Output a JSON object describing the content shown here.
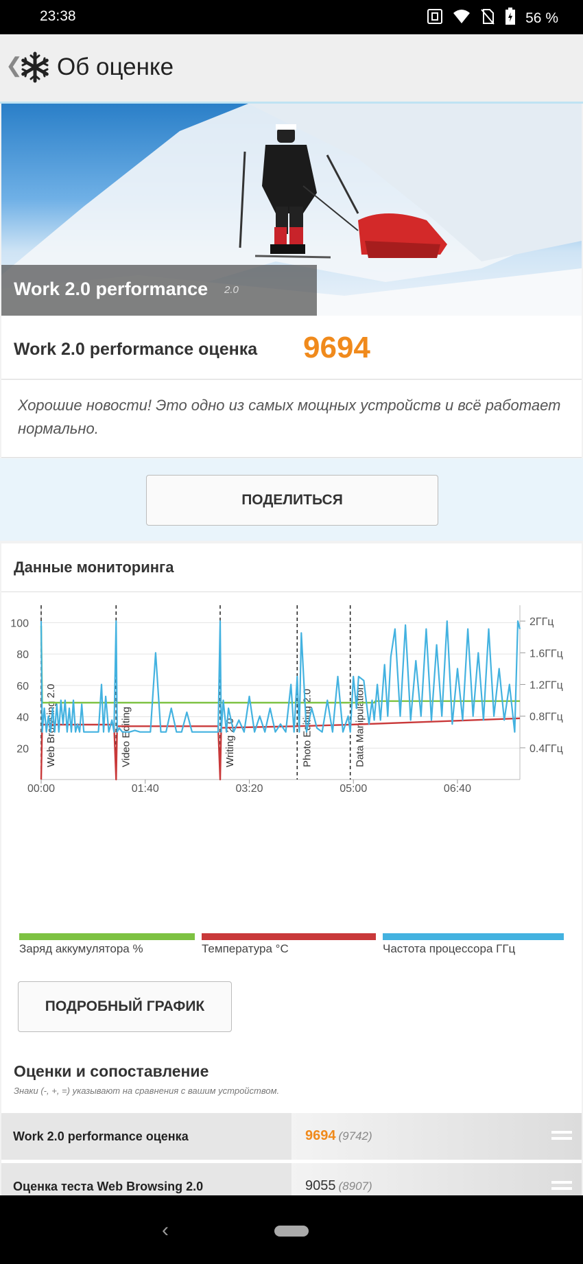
{
  "status": {
    "time": "23:38",
    "battery": "56 %"
  },
  "app": {
    "title": "Об оценке"
  },
  "hero": {
    "title": "Work 2.0 performance",
    "version": "2.0"
  },
  "score": {
    "label": "Work 2.0 performance оценка",
    "value": "9694"
  },
  "message": "Хорошие новости! Это одно из самых мощных устройств и всё работает нормально.",
  "share_label": "ПОДЕЛИТЬСЯ",
  "monitoring": {
    "title": "Данные мониторинга"
  },
  "legend": [
    {
      "label": "Заряд аккумулятора %",
      "color": "#7dc242"
    },
    {
      "label": "Температура °C",
      "color": "#c9393a"
    },
    {
      "label": "Частота процессора ГГц",
      "color": "#43b2e0"
    }
  ],
  "chart_data": {
    "type": "line",
    "x_ticks": [
      "00:00",
      "01:40",
      "03:20",
      "05:00",
      "06:40"
    ],
    "y_left_ticks": [
      "20",
      "40",
      "60",
      "80",
      "100"
    ],
    "y_right_ticks": [
      "0.4ГГц",
      "0.8ГГц",
      "1.2ГГц",
      "1.6ГГц",
      "2ГГц"
    ],
    "ylim": [
      0,
      100
    ],
    "y_right_lim": [
      0,
      2.2
    ],
    "x_range_minutes": [
      0,
      460
    ],
    "sections": [
      {
        "label": "Web Browsing 2.0",
        "start": 0
      },
      {
        "label": "Video Editing",
        "start": 72
      },
      {
        "label": "Writing 2.0",
        "start": 172
      },
      {
        "label": "Photo Editing 2.0",
        "start": 246
      },
      {
        "label": "Data Manipulation",
        "start": 297
      }
    ],
    "series": [
      {
        "name": "Заряд аккумулятора %",
        "color": "#7dc242",
        "unit": "%",
        "x": [
          0,
          1,
          320,
          321,
          460
        ],
        "y": [
          98,
          49,
          49,
          50,
          50
        ]
      },
      {
        "name": "Температура °C",
        "color": "#c9393a",
        "unit": "°C",
        "x": [
          0,
          1,
          70,
          72,
          73,
          170,
          172,
          173,
          246,
          297,
          380,
          460
        ],
        "y": [
          0,
          35,
          35,
          0,
          34,
          34,
          0,
          33,
          34,
          35,
          37,
          39
        ],
        "note": "drops at section starts"
      },
      {
        "name": "Частота процессора ГГц",
        "color": "#43b2e0",
        "unit": "ГГц",
        "x": [
          0,
          1,
          3,
          5,
          7,
          9,
          11,
          13,
          15,
          17,
          19,
          21,
          23,
          25,
          27,
          29,
          31,
          33,
          35,
          37,
          39,
          41,
          45,
          50,
          55,
          58,
          60,
          62,
          65,
          68,
          70,
          72,
          73,
          75,
          78,
          85,
          90,
          95,
          100,
          105,
          110,
          115,
          118,
          120,
          125,
          130,
          135,
          140,
          145,
          150,
          155,
          160,
          165,
          170,
          172,
          173,
          175,
          178,
          180,
          185,
          190,
          195,
          200,
          205,
          210,
          215,
          220,
          225,
          230,
          235,
          240,
          243,
          246,
          248,
          250,
          255,
          260,
          265,
          270,
          275,
          280,
          285,
          290,
          295,
          297,
          300,
          303,
          305,
          310,
          315,
          318,
          320,
          323,
          326,
          330,
          333,
          336,
          340,
          345,
          350,
          355,
          360,
          365,
          370,
          375,
          380,
          385,
          390,
          395,
          400,
          405,
          410,
          415,
          420,
          425,
          430,
          435,
          440,
          445,
          450,
          455,
          458,
          460
        ],
        "y": [
          2.0,
          0.6,
          0.9,
          0.6,
          0.8,
          0.6,
          0.9,
          0.6,
          0.95,
          0.6,
          1.0,
          0.7,
          1.0,
          0.6,
          0.9,
          0.6,
          1.0,
          0.6,
          0.7,
          0.6,
          0.95,
          0.6,
          0.6,
          0.6,
          0.6,
          1.2,
          0.6,
          1.05,
          0.6,
          0.75,
          0.6,
          2.0,
          0.6,
          0.65,
          0.6,
          0.6,
          0.62,
          0.6,
          0.6,
          0.6,
          1.6,
          0.6,
          0.6,
          0.6,
          0.9,
          0.6,
          0.6,
          0.85,
          0.6,
          0.6,
          0.6,
          0.6,
          0.6,
          0.6,
          2.0,
          0.6,
          1.0,
          0.6,
          0.9,
          0.6,
          0.75,
          0.6,
          1.05,
          0.6,
          0.8,
          0.6,
          0.9,
          0.6,
          0.7,
          0.6,
          1.2,
          0.6,
          1.3,
          0.6,
          1.85,
          0.6,
          0.9,
          0.65,
          0.6,
          1.0,
          0.6,
          1.3,
          0.6,
          0.8,
          0.6,
          1.3,
          0.9,
          1.3,
          1.25,
          0.7,
          1.0,
          0.75,
          1.2,
          0.75,
          1.45,
          0.8,
          1.55,
          1.9,
          0.8,
          1.95,
          0.75,
          1.5,
          0.8,
          1.9,
          0.75,
          1.7,
          0.8,
          2.0,
          0.7,
          1.4,
          0.75,
          1.9,
          0.8,
          1.6,
          0.75,
          1.9,
          0.8,
          1.4,
          0.75,
          1.2,
          0.6,
          2.0,
          1.9
        ]
      }
    ]
  },
  "detail_label": "ПОДРОБНЫЙ ГРАФИК",
  "comparison": {
    "title": "Оценки и сопоставление",
    "note": "Знаки (-, +, =) указывают на сравнения с вашим устройством.",
    "rows": [
      {
        "label": "Work 2.0 performance оценка",
        "value": "9694",
        "compare": "(9742)",
        "highlight": true
      },
      {
        "label": "Оценка теста Web Browsing 2.0",
        "value": "9055",
        "compare": "(8907)",
        "highlight": false
      }
    ]
  }
}
